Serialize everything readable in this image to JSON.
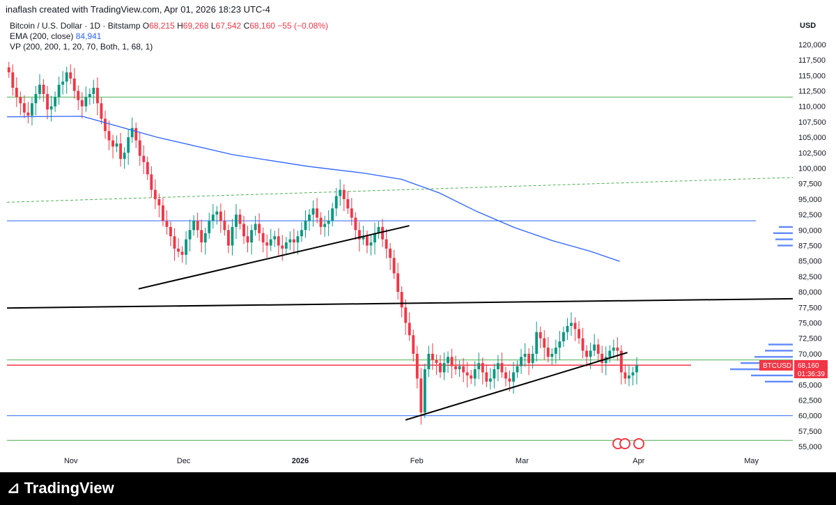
{
  "header": {
    "text": "inaflash created with TradingView.com, Apr 01, 2026 18:23 UTC-4"
  },
  "legend": {
    "symbol": "Bitcoin / U.S. Dollar · 1D · Bitstamp",
    "o_label": "O",
    "o": "68,215",
    "h_label": "H",
    "h": "69,268",
    "l_label": "L",
    "l": "67,542",
    "c_label": "C",
    "c": "68,160",
    "change": "−55 (−0.08%)",
    "ema_label": "EMA (200, close)",
    "ema_value": "84,941",
    "vp_label": "VP (200, 200, 1, 20, 70, Both, 1, 68, 1)"
  },
  "price_axis": {
    "currency": "USD"
  },
  "badge": {
    "ticker": "BTCUSD",
    "price": "68,160",
    "countdown": "01:36:39"
  },
  "brand": {
    "name": "TradingView"
  },
  "colors": {
    "up": "#089981",
    "down": "#f23645",
    "ema": "#2962ff",
    "green_line": "#4caf50",
    "blue_line": "#2962ff"
  },
  "chart_data": {
    "type": "candlestick",
    "title": "Bitcoin / U.S. Dollar · 1D · Bitstamp",
    "y_ticks": [
      55000,
      57500,
      60000,
      62500,
      65000,
      67500,
      70000,
      72500,
      75000,
      77500,
      80000,
      82500,
      85000,
      87500,
      90000,
      92500,
      95000,
      97500,
      100000,
      102500,
      105000,
      107500,
      110000,
      112500,
      115000,
      117500,
      120000
    ],
    "ylim": [
      54000,
      121000
    ],
    "x_ticks": [
      {
        "label": "Nov",
        "day": 17
      },
      {
        "label": "Dec",
        "day": 47
      },
      {
        "label": "2026",
        "day": 78
      },
      {
        "label": "Feb",
        "day": 109
      },
      {
        "label": "Mar",
        "day": 137
      },
      {
        "label": "Apr",
        "day": 168
      },
      {
        "label": "May",
        "day": 198
      }
    ],
    "x_range_days": [
      0,
      209
    ],
    "closes": [
      115500,
      113000,
      111500,
      110500,
      109000,
      108500,
      110500,
      112000,
      113500,
      112000,
      109500,
      110000,
      111500,
      113500,
      114000,
      115500,
      114500,
      112500,
      111000,
      110000,
      111500,
      112000,
      113000,
      110500,
      108000,
      106000,
      104500,
      103500,
      104000,
      101500,
      102500,
      105000,
      106500,
      104500,
      102000,
      101000,
      99000,
      96500,
      95000,
      94000,
      91500,
      90500,
      89000,
      87000,
      86500,
      86000,
      88500,
      90000,
      91500,
      90000,
      88000,
      89500,
      91500,
      92500,
      93000,
      91500,
      90000,
      87500,
      90500,
      92500,
      91000,
      89000,
      88000,
      90000,
      91000,
      89500,
      88000,
      87500,
      88500,
      89000,
      87500,
      87000,
      88000,
      88500,
      88000,
      89000,
      90000,
      91500,
      92500,
      93500,
      92000,
      90500,
      91000,
      91500,
      93500,
      95500,
      96500,
      95000,
      93500,
      92000,
      90000,
      88500,
      89000,
      87500,
      88000,
      89500,
      90500,
      88500,
      87000,
      85500,
      83000,
      80000,
      77500,
      75000,
      73000,
      70000,
      66000,
      60500,
      67500,
      70000,
      69000,
      68500,
      67000,
      68500,
      69500,
      68000,
      67500,
      68000,
      67000,
      66500,
      66000,
      67500,
      68500,
      67000,
      65500,
      66000,
      67500,
      68500,
      67000,
      66000,
      65500,
      67000,
      68000,
      69500,
      70000,
      68500,
      70000,
      73500,
      72500,
      71000,
      69500,
      70000,
      71000,
      72000,
      73500,
      74500,
      75000,
      74000,
      72500,
      70500,
      69500,
      70500,
      71500,
      70000,
      68500,
      69500,
      70500,
      71000,
      70500,
      67000,
      66000,
      66500,
      67000,
      68160
    ]
  },
  "levels": {
    "green": [
      111500,
      69000,
      56000
    ],
    "blue": [
      91500,
      60000
    ],
    "red": [
      68160
    ],
    "dashed_green": {
      "from": [
        0,
        94500
      ],
      "to": [
        209,
        98500
      ]
    },
    "black_lines": [
      {
        "from": [
          35,
          80500
        ],
        "to": [
          107,
          90700
        ]
      },
      {
        "from": [
          0,
          77400
        ],
        "to": [
          209,
          78900
        ]
      },
      {
        "from": [
          106,
          59300
        ],
        "to": [
          165,
          70200
        ]
      }
    ]
  },
  "ema": [
    {
      "day": 0,
      "v": 108300
    },
    {
      "day": 20,
      "v": 108400
    },
    {
      "day": 40,
      "v": 105000
    },
    {
      "day": 60,
      "v": 102200
    },
    {
      "day": 80,
      "v": 100300
    },
    {
      "day": 95,
      "v": 99200
    },
    {
      "day": 105,
      "v": 98200
    },
    {
      "day": 115,
      "v": 96000
    },
    {
      "day": 125,
      "v": 93000
    },
    {
      "day": 135,
      "v": 90400
    },
    {
      "day": 145,
      "v": 88300
    },
    {
      "day": 155,
      "v": 86600
    },
    {
      "day": 163,
      "v": 84941
    }
  ]
}
